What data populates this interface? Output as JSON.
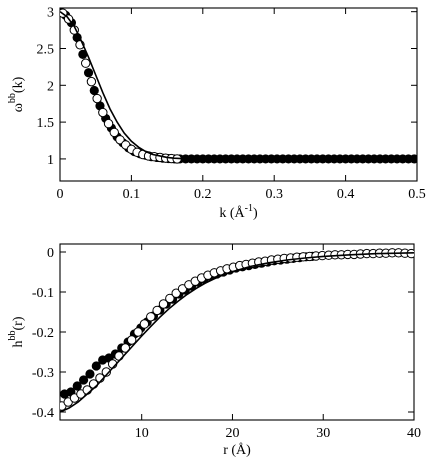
{
  "chart_data": [
    {
      "type": "scatter",
      "title": "",
      "xlabel": "k (Å",
      "xlabel_sup": "-1",
      "xlabel_close": ")",
      "ylabel": "ω",
      "ylabel_sup": "bb",
      "ylabel_tail": "(k)",
      "xlim": [
        0,
        0.5
      ],
      "ylim": [
        0.7,
        3.05
      ],
      "xticks": [
        0,
        0.1,
        0.2,
        0.3,
        0.4,
        0.5
      ],
      "xtick_labels": [
        "0",
        "0.1",
        "0.2",
        "0.3",
        "0.4",
        "0.5"
      ],
      "yticks": [
        1,
        1.5,
        2,
        2.5,
        3
      ],
      "ytick_labels": [
        "1",
        "1.5",
        "2",
        "2.5",
        "3"
      ],
      "grid": false,
      "series": [
        {
          "style": "filled-circle",
          "x": [
            0,
            0.008,
            0.016,
            0.024,
            0.032,
            0.04,
            0.048,
            0.056,
            0.064,
            0.072,
            0.08,
            0.088,
            0.096,
            0.104,
            0.112,
            0.12,
            0.128,
            0.136,
            0.144,
            0.152,
            0.16,
            0.168,
            0.176,
            0.184,
            0.192,
            0.2,
            0.208,
            0.216,
            0.224,
            0.232,
            0.24,
            0.248,
            0.256,
            0.264,
            0.272,
            0.28,
            0.288,
            0.296,
            0.304,
            0.312,
            0.32,
            0.328,
            0.336,
            0.344,
            0.352,
            0.36,
            0.368,
            0.376,
            0.384,
            0.392,
            0.4,
            0.408,
            0.416,
            0.424,
            0.432,
            0.44,
            0.448,
            0.456,
            0.464,
            0.472,
            0.48,
            0.488,
            0.496
          ],
          "y": [
            3.0,
            2.95,
            2.85,
            2.65,
            2.42,
            2.17,
            1.93,
            1.72,
            1.55,
            1.42,
            1.3,
            1.22,
            1.15,
            1.1,
            1.07,
            1.05,
            1.03,
            1.02,
            1.01,
            1.005,
            1.0,
            1.0,
            1.0,
            1.0,
            1.0,
            1.0,
            1.0,
            1.0,
            1.0,
            1.0,
            1.0,
            1.0,
            1.0,
            1.0,
            1.0,
            1.0,
            1.0,
            1.0,
            1.0,
            1.0,
            1.0,
            1.0,
            1.0,
            1.0,
            1.0,
            1.0,
            1.0,
            1.0,
            1.0,
            1.0,
            1.0,
            1.0,
            1.0,
            1.0,
            1.0,
            1.0,
            1.0,
            1.0,
            1.0,
            1.0,
            1.0,
            1.0,
            1.0
          ]
        },
        {
          "style": "open-circle",
          "x": [
            0.004,
            0.012,
            0.02,
            0.028,
            0.036,
            0.044,
            0.052,
            0.06,
            0.068,
            0.076,
            0.084,
            0.092,
            0.1,
            0.108,
            0.116,
            0.124,
            0.132,
            0.14,
            0.148,
            0.156,
            0.164
          ],
          "y": [
            2.98,
            2.9,
            2.75,
            2.55,
            2.3,
            2.05,
            1.82,
            1.63,
            1.48,
            1.36,
            1.26,
            1.19,
            1.13,
            1.09,
            1.06,
            1.04,
            1.03,
            1.02,
            1.01,
            1.005,
            1.0
          ]
        },
        {
          "style": "line",
          "x": [
            0,
            0.01,
            0.02,
            0.03,
            0.04,
            0.05,
            0.06,
            0.07,
            0.08,
            0.09,
            0.1,
            0.11,
            0.12,
            0.13,
            0.14,
            0.15,
            0.16,
            0.17,
            0.18,
            0.2,
            0.25,
            0.3,
            0.4,
            0.5
          ],
          "y": [
            3.0,
            2.93,
            2.8,
            2.6,
            2.38,
            2.14,
            1.9,
            1.68,
            1.5,
            1.35,
            1.24,
            1.16,
            1.1,
            1.06,
            1.04,
            1.02,
            1.01,
            1.005,
            1.0,
            1.0,
            1.0,
            1.0,
            1.0,
            1.0
          ]
        }
      ]
    },
    {
      "type": "scatter",
      "title": "",
      "xlabel": "r (Å)",
      "ylabel": "h",
      "ylabel_sup": "bb",
      "ylabel_tail": "(r)",
      "xlim": [
        1,
        40
      ],
      "ylim": [
        -0.42,
        0.02
      ],
      "xticks": [
        10,
        20,
        30,
        40
      ],
      "xtick_labels": [
        "10",
        "20",
        "30",
        "40"
      ],
      "yticks": [
        0,
        -0.1,
        -0.2,
        -0.3,
        -0.4
      ],
      "ytick_labels": [
        "0",
        "-0.1",
        "-0.2",
        "-0.3",
        "-0.4"
      ],
      "grid": false,
      "series": [
        {
          "style": "filled-circle",
          "x": [
            1.5,
            2.2,
            2.9,
            3.6,
            4.3,
            5.0,
            5.7,
            6.4,
            7.1,
            7.8,
            8.5,
            9.2,
            9.9,
            10.6,
            11.3,
            12.0,
            12.7,
            13.4,
            14.1,
            14.8,
            15.5,
            16.2,
            16.9,
            17.6,
            18.3,
            19.0,
            19.7,
            20.4,
            21.1,
            21.8,
            22.5,
            23.2,
            23.9,
            24.6,
            25.3,
            26.0,
            26.7,
            27.4,
            28.1,
            28.8
          ],
          "y": [
            -0.355,
            -0.35,
            -0.335,
            -0.32,
            -0.305,
            -0.285,
            -0.27,
            -0.265,
            -0.255,
            -0.24,
            -0.225,
            -0.205,
            -0.19,
            -0.175,
            -0.16,
            -0.145,
            -0.13,
            -0.118,
            -0.105,
            -0.095,
            -0.085,
            -0.075,
            -0.068,
            -0.06,
            -0.055,
            -0.05,
            -0.045,
            -0.04,
            -0.037,
            -0.034,
            -0.031,
            -0.028,
            -0.025,
            -0.022,
            -0.02,
            -0.018,
            -0.016,
            -0.014,
            -0.012,
            -0.011
          ]
        },
        {
          "style": "open-circle",
          "x": [
            1.2,
            1.9,
            2.6,
            3.3,
            4.0,
            4.7,
            5.4,
            6.1,
            6.8,
            7.5,
            8.2,
            8.9,
            9.6,
            10.3,
            11.0,
            11.7,
            12.4,
            13.1,
            13.8,
            14.5,
            15.2,
            15.9,
            16.6,
            17.3,
            18.0,
            18.7,
            19.4,
            20.1,
            20.8,
            21.5,
            22.2,
            22.9,
            23.6,
            24.3,
            25.0,
            25.7,
            26.4,
            27.1,
            27.8,
            28.5,
            29.2,
            29.9,
            30.6,
            31.3,
            32.0,
            32.7,
            33.4,
            34.1,
            34.8,
            35.5,
            36.2,
            36.9,
            37.6,
            38.3,
            39.0,
            39.7
          ],
          "y": [
            -0.385,
            -0.375,
            -0.365,
            -0.355,
            -0.345,
            -0.33,
            -0.315,
            -0.3,
            -0.28,
            -0.26,
            -0.24,
            -0.22,
            -0.2,
            -0.18,
            -0.162,
            -0.146,
            -0.13,
            -0.116,
            -0.103,
            -0.092,
            -0.082,
            -0.073,
            -0.065,
            -0.058,
            -0.052,
            -0.047,
            -0.042,
            -0.038,
            -0.034,
            -0.031,
            -0.028,
            -0.025,
            -0.023,
            -0.02,
            -0.018,
            -0.016,
            -0.015,
            -0.013,
            -0.012,
            -0.011,
            -0.01,
            -0.009,
            -0.008,
            -0.007,
            -0.007,
            -0.006,
            -0.006,
            -0.005,
            -0.004,
            -0.004,
            -0.003,
            -0.003,
            -0.002,
            -0.002,
            -0.003,
            -0.004
          ]
        },
        {
          "style": "line",
          "x": [
            1.0,
            2.0,
            3.0,
            4.0,
            5.0,
            6.0,
            7.0,
            8.0,
            9.0,
            10.0,
            11.0,
            12.0,
            13.0,
            14.0,
            15.0,
            16.0,
            17.0,
            18.0,
            19.0,
            20.0,
            22.0,
            24.0,
            26.0,
            28.0,
            30.0,
            33.0,
            36.0,
            40.0
          ],
          "y": [
            -0.4,
            -0.39,
            -0.375,
            -0.355,
            -0.335,
            -0.31,
            -0.285,
            -0.26,
            -0.235,
            -0.21,
            -0.186,
            -0.163,
            -0.142,
            -0.123,
            -0.106,
            -0.091,
            -0.078,
            -0.067,
            -0.057,
            -0.049,
            -0.036,
            -0.027,
            -0.02,
            -0.015,
            -0.011,
            -0.007,
            -0.004,
            -0.002
          ]
        }
      ]
    }
  ]
}
